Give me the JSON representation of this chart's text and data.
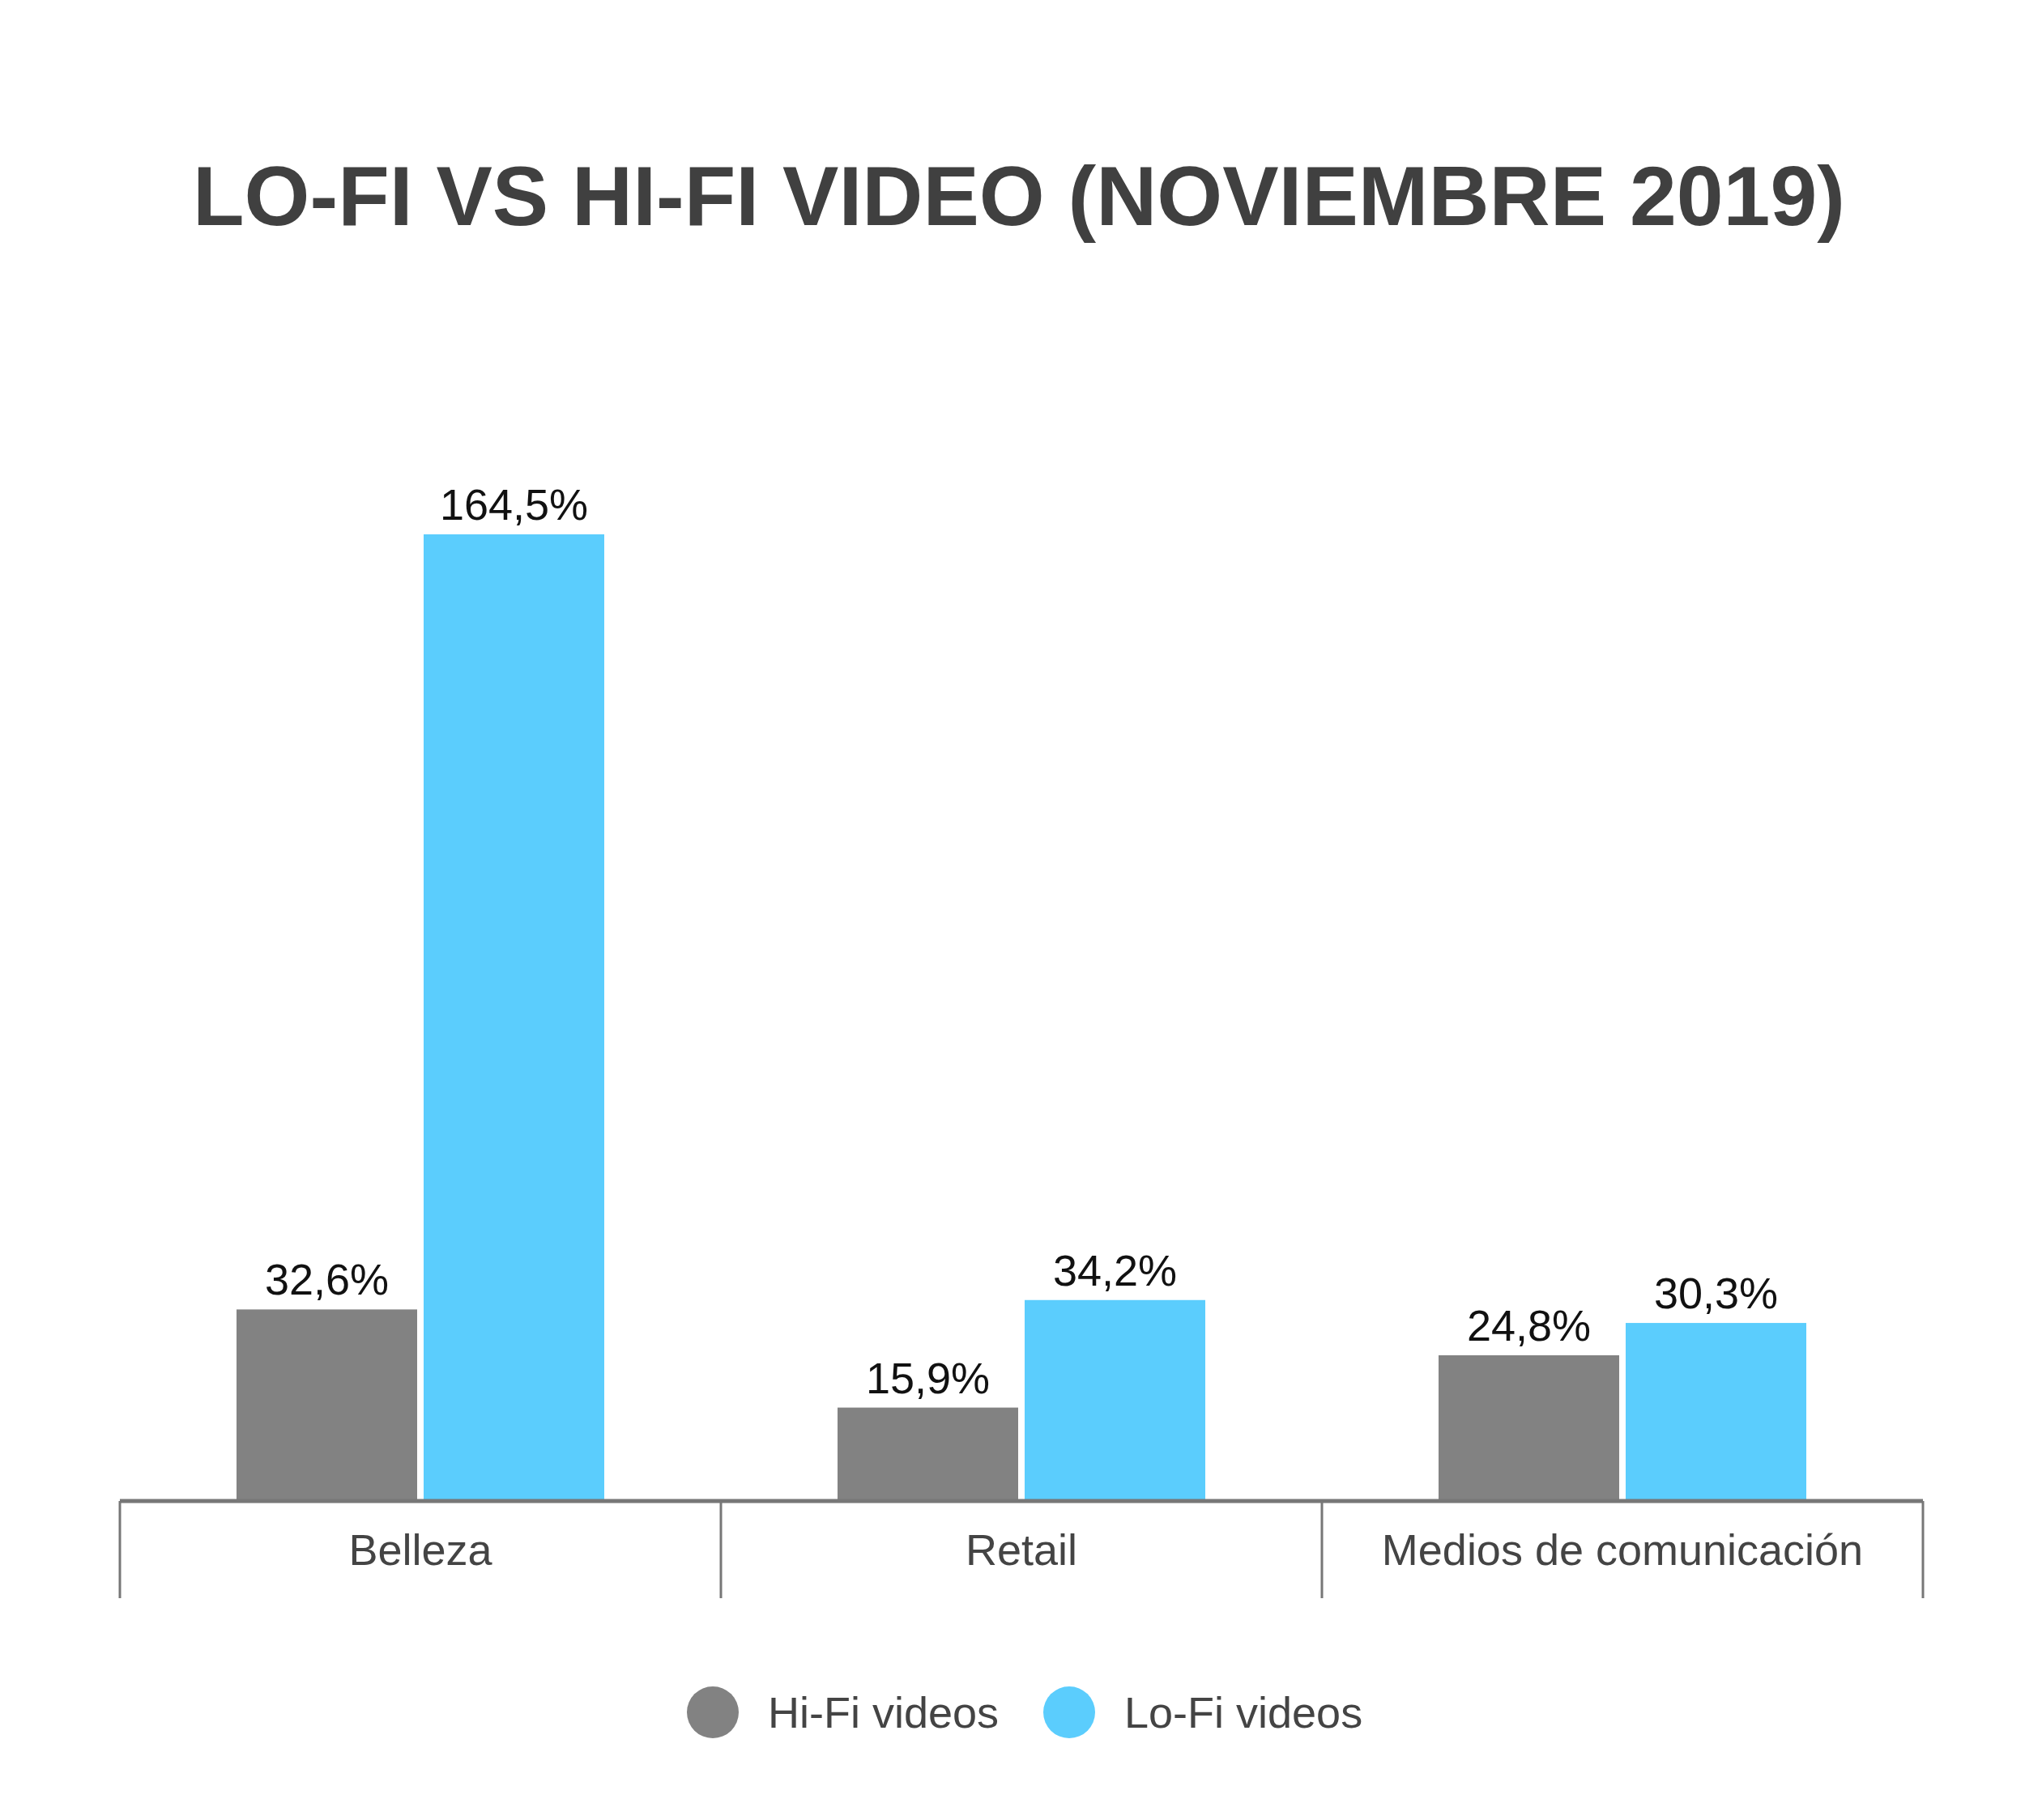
{
  "chart_data": {
    "type": "bar",
    "title": "LO-FI VS HI-FI VIDEO (NOVIEMBRE 2019)",
    "categories": [
      "Belleza",
      "Retail",
      "Medios de comunicación"
    ],
    "series": [
      {
        "name": "Hi-Fi videos",
        "color": "#828282",
        "values": [
          32.6,
          15.9,
          24.8
        ],
        "value_labels": [
          "32,6%",
          "15,9%",
          "24,8%"
        ]
      },
      {
        "name": "Lo-Fi videos",
        "color": "#5bcdfd",
        "values": [
          164.5,
          34.2,
          30.3
        ],
        "value_labels": [
          "164,5%",
          "34,2%",
          "30,3%"
        ]
      }
    ],
    "legend": "bottom"
  }
}
